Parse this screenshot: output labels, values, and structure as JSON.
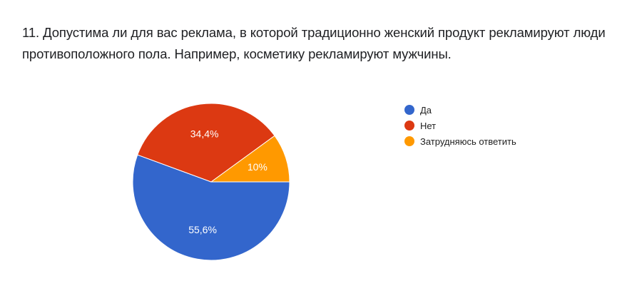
{
  "question": {
    "title": "11. Допустима ли для вас реклама, в которой традиционно женский продукт рекламируют люди противоположного пола. Например, косметику рекламируют мужчины."
  },
  "legend": {
    "items": [
      {
        "label": "Да",
        "color": "#3366cc"
      },
      {
        "label": "Нет",
        "color": "#dc3912"
      },
      {
        "label": "Затрудняюсь ответить",
        "color": "#ff9900"
      }
    ]
  },
  "chart_data": {
    "type": "pie",
    "title": "11. Допустима ли для вас реклама, в которой традиционно женский продукт рекламируют люди противоположного пола. Например, косметику рекламируют мужчины.",
    "categories": [
      "Да",
      "Нет",
      "Затрудняюсь ответить"
    ],
    "values": [
      55.6,
      34.4,
      10
    ],
    "labels": [
      "55,6%",
      "34,4%",
      "10%"
    ],
    "colors": [
      "#3366cc",
      "#dc3912",
      "#ff9900"
    ],
    "legend_position": "right"
  }
}
